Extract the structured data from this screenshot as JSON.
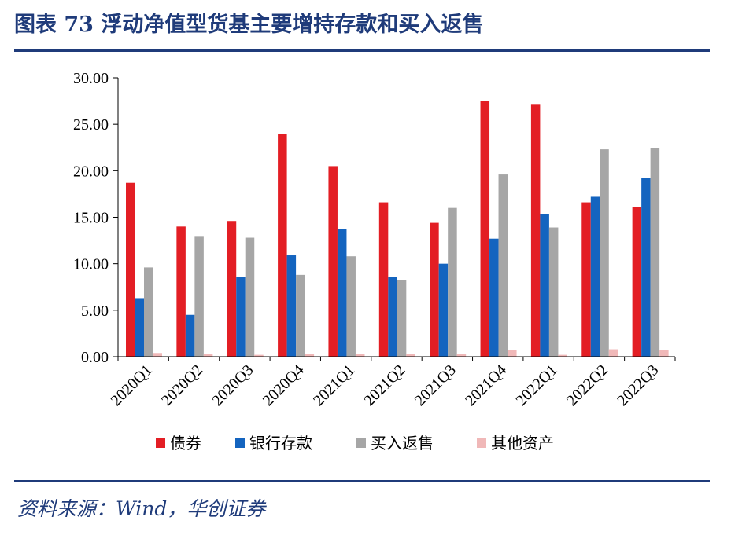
{
  "header": {
    "title": "图表 73  浮动净值型货基主要增持存款和买入返售"
  },
  "footer": {
    "source": "资料来源：Wind，华创证券"
  },
  "chart_data": {
    "type": "bar",
    "title": "浮动净值型货基主要增持存款和买入返售",
    "xlabel": "",
    "ylabel": "",
    "ylim": [
      0,
      30
    ],
    "yticks": [
      0,
      5,
      10,
      15,
      20,
      25,
      30
    ],
    "ytick_labels": [
      "0.00",
      "5.00",
      "10.00",
      "15.00",
      "20.00",
      "25.00",
      "30.00"
    ],
    "categories": [
      "2020Q1",
      "2020Q2",
      "2020Q3",
      "2020Q4",
      "2021Q1",
      "2021Q2",
      "2021Q3",
      "2021Q4",
      "2022Q1",
      "2022Q2",
      "2022Q3"
    ],
    "series": [
      {
        "name": "债券",
        "color": "#e31e24",
        "values": [
          18.7,
          14.0,
          14.6,
          24.0,
          20.5,
          16.6,
          14.4,
          27.5,
          27.1,
          16.6,
          16.1
        ]
      },
      {
        "name": "银行存款",
        "color": "#1464bf",
        "values": [
          6.3,
          4.5,
          8.6,
          10.9,
          13.7,
          8.6,
          10.0,
          12.7,
          15.3,
          17.2,
          19.2
        ]
      },
      {
        "name": "买入返售",
        "color": "#a6a6a6",
        "values": [
          9.6,
          12.9,
          12.8,
          8.8,
          10.8,
          8.2,
          16.0,
          19.6,
          13.9,
          22.3,
          22.4
        ]
      },
      {
        "name": "其他资产",
        "color": "#f0b8b8",
        "values": [
          0.4,
          0.3,
          0.2,
          0.3,
          0.3,
          0.3,
          0.3,
          0.7,
          0.2,
          0.8,
          0.7
        ]
      }
    ],
    "legend": "bottom",
    "grid": false
  }
}
